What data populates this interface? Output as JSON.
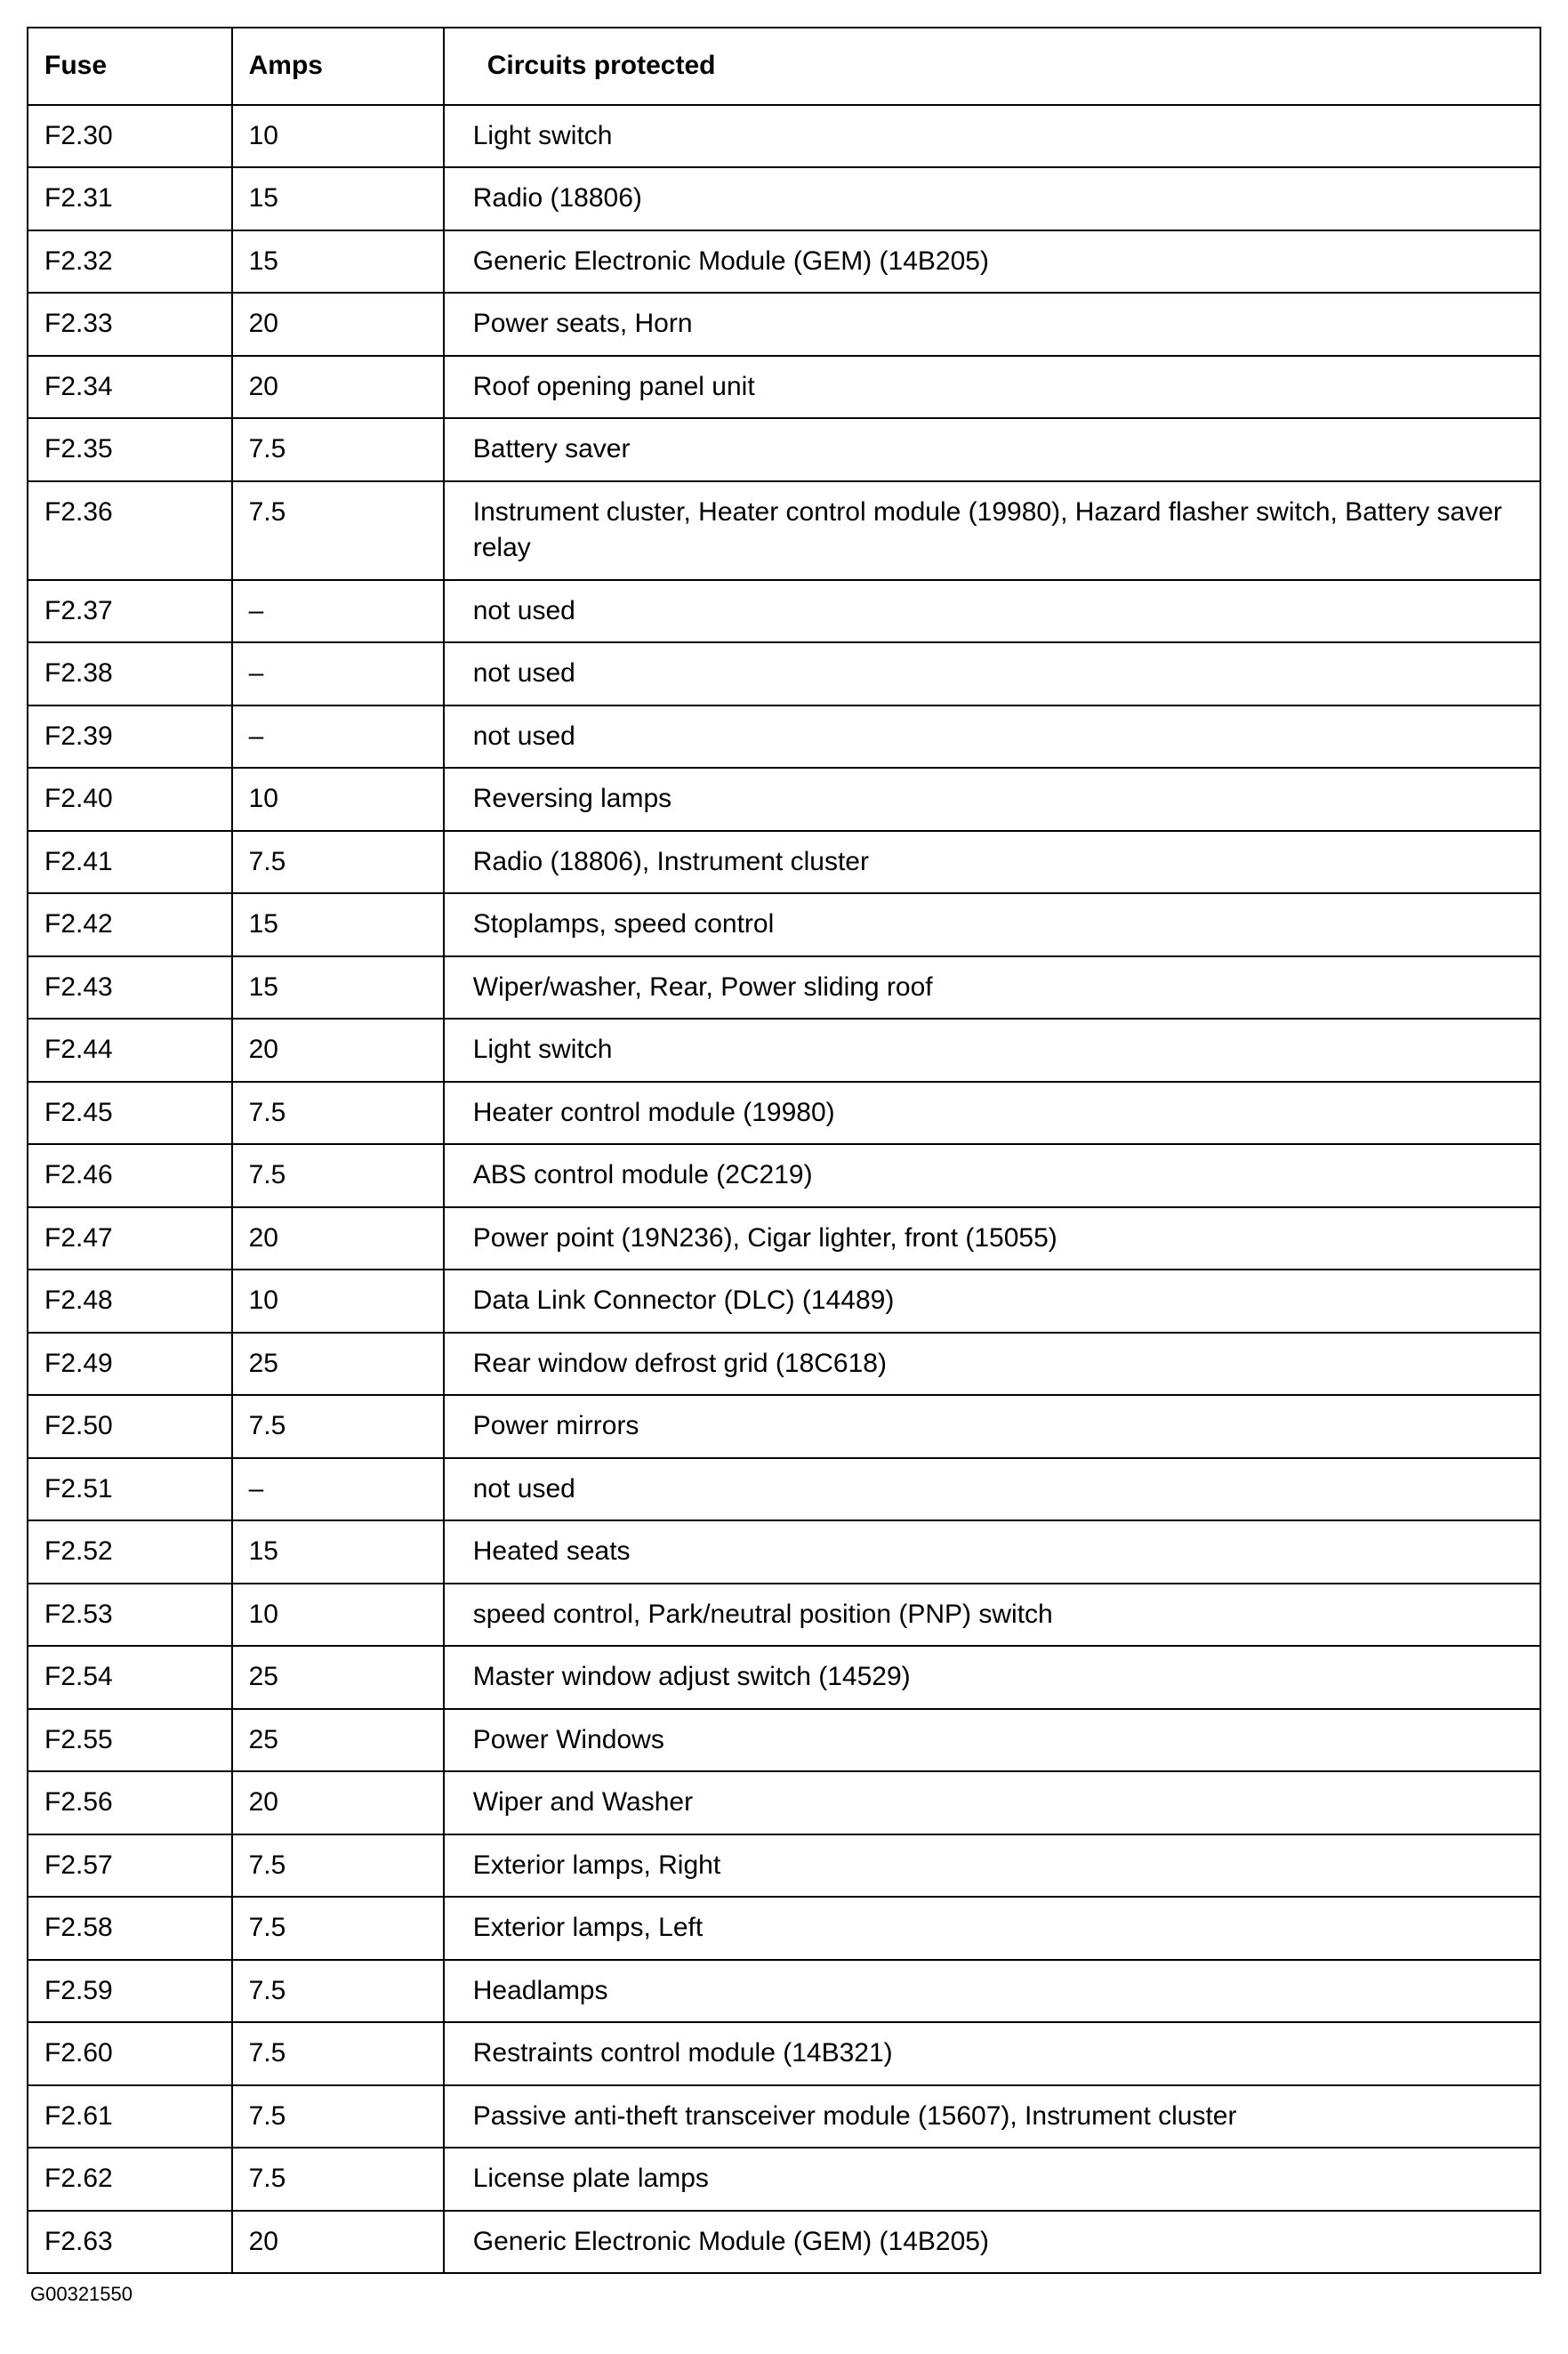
{
  "table": {
    "columns": [
      "Fuse",
      "Amps",
      "Circuits protected"
    ],
    "col_widths_pct": [
      13.5,
      14.0,
      72.5
    ],
    "header_fontsize_pt": 22,
    "cell_fontsize_pt": 22,
    "border_color": "#000000",
    "background_color": "#ffffff",
    "text_color": "#000000",
    "rows": [
      [
        "F2.30",
        "10",
        "Light switch"
      ],
      [
        "F2.31",
        "15",
        "Radio (18806)"
      ],
      [
        "F2.32",
        "15",
        "Generic Electronic Module (GEM) (14B205)"
      ],
      [
        "F2.33",
        "20",
        "Power seats, Horn"
      ],
      [
        "F2.34",
        "20",
        "Roof opening panel unit"
      ],
      [
        "F2.35",
        "7.5",
        "Battery saver"
      ],
      [
        "F2.36",
        "7.5",
        "Instrument cluster, Heater control module (19980), Hazard flasher switch, Battery saver relay"
      ],
      [
        "F2.37",
        "–",
        "not used"
      ],
      [
        "F2.38",
        "–",
        "not used"
      ],
      [
        "F2.39",
        "–",
        "not used"
      ],
      [
        "F2.40",
        "10",
        "Reversing lamps"
      ],
      [
        "F2.41",
        "7.5",
        "Radio (18806), Instrument cluster"
      ],
      [
        "F2.42",
        "15",
        "Stoplamps, speed control"
      ],
      [
        "F2.43",
        "15",
        "Wiper/washer, Rear, Power sliding roof"
      ],
      [
        "F2.44",
        "20",
        "Light switch"
      ],
      [
        "F2.45",
        "7.5",
        "Heater control module (19980)"
      ],
      [
        "F2.46",
        "7.5",
        "ABS control module (2C219)"
      ],
      [
        "F2.47",
        "20",
        "Power point (19N236), Cigar lighter, front (15055)"
      ],
      [
        "F2.48",
        "10",
        "Data Link Connector (DLC) (14489)"
      ],
      [
        "F2.49",
        "25",
        "Rear window defrost grid (18C618)"
      ],
      [
        "F2.50",
        "7.5",
        "Power mirrors"
      ],
      [
        "F2.51",
        "–",
        "not used"
      ],
      [
        "F2.52",
        "15",
        "Heated seats"
      ],
      [
        "F2.53",
        "10",
        "speed control, Park/neutral position (PNP) switch"
      ],
      [
        "F2.54",
        "25",
        "Master window adjust switch (14529)"
      ],
      [
        "F2.55",
        "25",
        "Power Windows"
      ],
      [
        "F2.56",
        "20",
        "Wiper and Washer"
      ],
      [
        "F2.57",
        "7.5",
        "Exterior lamps, Right"
      ],
      [
        "F2.58",
        "7.5",
        "Exterior lamps, Left"
      ],
      [
        "F2.59",
        "7.5",
        "Headlamps"
      ],
      [
        "F2.60",
        "7.5",
        "Restraints control module (14B321)"
      ],
      [
        "F2.61",
        "7.5",
        "Passive anti-theft transceiver module (15607), Instrument cluster"
      ],
      [
        "F2.62",
        "7.5",
        "License plate lamps"
      ],
      [
        "F2.63",
        "20",
        "Generic Electronic Module (GEM) (14B205)"
      ]
    ]
  },
  "footer_id": "G00321550"
}
